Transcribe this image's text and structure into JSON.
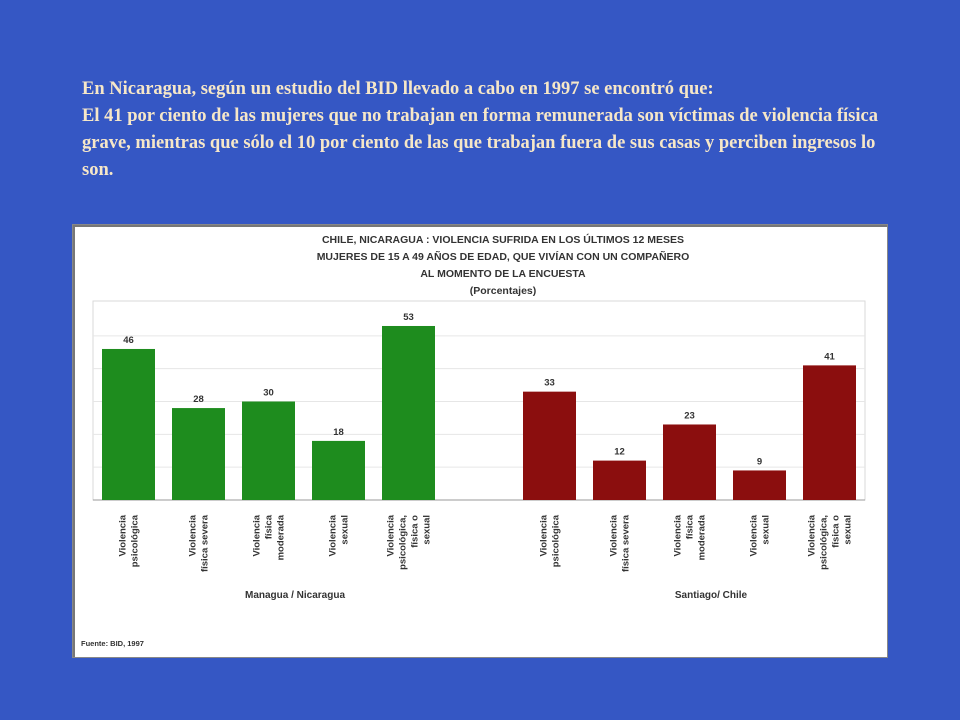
{
  "intro": {
    "line1": "En Nicaragua, según un estudio del BID llevado a cabo en 1997 se encontró que:",
    "line2": "El  41 por ciento de las mujeres que no trabajan en forma remunerada son víctimas de violencia física grave, mientras que sólo el 10 por ciento de las que trabajan fuera de sus casas y perciben ingresos lo son."
  },
  "colors": {
    "background": "#3557c4",
    "text": "#f6e7c8",
    "nicaragua": "#1e8c1e",
    "chile": "#8b0e0e"
  },
  "chart_data": {
    "type": "bar",
    "title_lines": [
      "CHILE, NICARAGUA : VIOLENCIA SUFRIDA EN LOS ÚLTIMOS 12  MESES",
      "MUJERES DE 15 A 49 AÑOS DE EDAD, QUE VIVÍAN CON UN COMPAÑERO",
      "AL MOMENTO DE LA ENCUESTA",
      "(Porcentajes)"
    ],
    "ylim": [
      0,
      60
    ],
    "grid": true,
    "groups": [
      {
        "name": "Managua / Nicaragua",
        "categories": [
          [
            "Violencia",
            "psicológica"
          ],
          [
            "Violencia",
            "física severa"
          ],
          [
            "Violencia",
            "física",
            "moderada"
          ],
          [
            "Violencia",
            "sexual"
          ],
          [
            "Violencia",
            "psicológica,",
            "física o",
            "sexual"
          ]
        ],
        "values": [
          46,
          28,
          30,
          18,
          53
        ]
      },
      {
        "name": "Santiago/ Chile",
        "categories": [
          [
            "Violencia",
            "psicológica"
          ],
          [
            "Violencia",
            "física severa"
          ],
          [
            "Violencia",
            "física",
            "moderada"
          ],
          [
            "Violencia",
            "sexual"
          ],
          [
            "Violencia",
            "psicológica,",
            "física o",
            "sexual"
          ]
        ],
        "values": [
          33,
          12,
          23,
          9,
          41
        ]
      }
    ],
    "source": "Fuente: BID, 1997"
  }
}
